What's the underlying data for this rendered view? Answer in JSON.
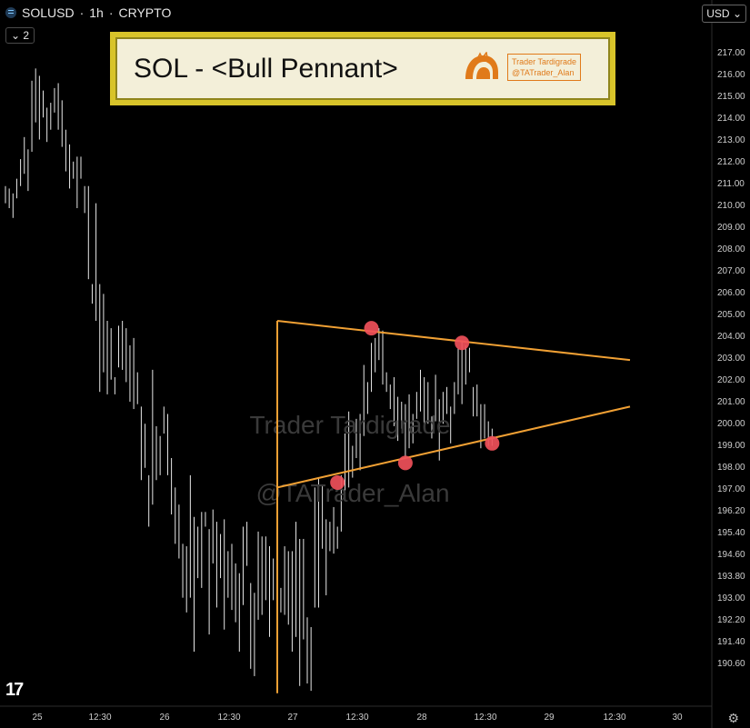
{
  "header": {
    "symbol": "SOLUSD",
    "timeframe": "1h",
    "market": "CRYPTO",
    "separator": "·",
    "indicator_badge": "2",
    "currency": "USD"
  },
  "annotation": {
    "title": "SOL - <Bull Pennant>",
    "brand_name": "Trader Tardigrade",
    "brand_handle": "@TATrader_Alan"
  },
  "watermark": {
    "line1": "Trader Tardigrade",
    "line2": "@TATrader_Alan"
  },
  "colors": {
    "background": "#000000",
    "candle": "#e8e8e8",
    "pattern_line": "#f0a034",
    "touch_point": "#f0505a",
    "title_border": "#d8c42a",
    "title_fill": "#f3efd9"
  },
  "chart_data": {
    "type": "line",
    "title": "SOL - <Bull Pennant>",
    "xlabel": "",
    "ylabel": "",
    "x_tick_labels": [
      "25",
      "12:30",
      "26",
      "12:30",
      "27",
      "12:30",
      "28",
      "12:30",
      "29",
      "12:30",
      "30"
    ],
    "y_tick_labels": [
      "217.00",
      "216.00",
      "215.00",
      "214.00",
      "213.00",
      "212.00",
      "211.00",
      "210.00",
      "209.00",
      "208.00",
      "207.00",
      "206.00",
      "205.00",
      "204.00",
      "203.00",
      "202.00",
      "201.00",
      "200.00",
      "199.00",
      "198.00",
      "197.00",
      "196.20",
      "195.40",
      "194.60",
      "193.80",
      "193.00",
      "192.20",
      "191.40",
      "190.60"
    ],
    "ylim": [
      190.5,
      217.5
    ],
    "grid": false,
    "price_bars": [
      [
        210.7,
        211.4
      ],
      [
        210.5,
        211.3
      ],
      [
        210.1,
        211.1
      ],
      [
        210.9,
        211.7
      ],
      [
        211.4,
        212.5
      ],
      [
        211.9,
        213.4
      ],
      [
        211.2,
        212.9
      ],
      [
        212.8,
        215.7
      ],
      [
        214.0,
        216.2
      ],
      [
        213.3,
        215.9
      ],
      [
        214.2,
        215.3
      ],
      [
        213.2,
        214.6
      ],
      [
        213.7,
        214.8
      ],
      [
        214.4,
        215.4
      ],
      [
        213.7,
        215.6
      ],
      [
        213.0,
        214.9
      ],
      [
        212.0,
        213.7
      ],
      [
        211.3,
        213.1
      ],
      [
        211.7,
        212.4
      ],
      [
        210.5,
        212.6
      ],
      [
        211.7,
        212.6
      ],
      [
        210.3,
        211.4
      ],
      [
        207.6,
        211.4
      ],
      [
        206.6,
        207.4
      ],
      [
        205.9,
        210.7
      ],
      [
        203.0,
        207.4
      ],
      [
        203.8,
        207.0
      ],
      [
        202.9,
        205.9
      ],
      [
        203.5,
        205.6
      ],
      [
        202.9,
        203.6
      ],
      [
        204.0,
        205.7
      ],
      [
        203.9,
        205.9
      ],
      [
        203.4,
        205.6
      ],
      [
        202.6,
        204.9
      ],
      [
        202.3,
        205.2
      ],
      [
        202.5,
        203.8
      ],
      [
        199.4,
        202.4
      ],
      [
        199.9,
        201.7
      ],
      [
        197.5,
        199.6
      ],
      [
        198.4,
        203.9
      ],
      [
        199.4,
        201.6
      ],
      [
        199.6,
        201.2
      ],
      [
        201.3,
        202.4
      ],
      [
        199.6,
        202.1
      ],
      [
        198.0,
        200.3
      ],
      [
        196.8,
        199.1
      ],
      [
        196.2,
        198.4
      ],
      [
        194.6,
        196.8
      ],
      [
        194.0,
        196.7
      ],
      [
        194.6,
        199.6
      ],
      [
        192.4,
        197.9
      ],
      [
        195.4,
        197.5
      ],
      [
        195.0,
        198.1
      ],
      [
        197.5,
        198.1
      ],
      [
        193.1,
        197.4
      ],
      [
        196.0,
        198.2
      ],
      [
        194.2,
        197.7
      ],
      [
        195.4,
        197.2
      ],
      [
        193.3,
        197.8
      ],
      [
        194.6,
        196.5
      ],
      [
        194.1,
        196.8
      ],
      [
        193.6,
        196.0
      ],
      [
        192.4,
        195.6
      ],
      [
        194.3,
        197.5
      ],
      [
        195.9,
        197.7
      ],
      [
        191.7,
        195.2
      ],
      [
        191.4,
        194.8
      ],
      [
        193.7,
        197.3
      ],
      [
        193.9,
        197.1
      ],
      [
        194.5,
        197.1
      ],
      [
        193.0,
        196.7
      ],
      [
        194.5,
        196.2
      ],
      [
        193.8,
        195.6
      ],
      [
        194.0,
        195.0
      ],
      [
        193.9,
        196.7
      ],
      [
        193.5,
        196.5
      ],
      [
        192.4,
        196.5
      ],
      [
        193.0,
        197.7
      ],
      [
        191.0,
        197.0
      ],
      [
        192.9,
        197.0
      ],
      [
        191.1,
        193.8
      ],
      [
        190.8,
        193.4
      ],
      [
        194.2,
        199.1
      ],
      [
        194.2,
        199.5
      ],
      [
        196.6,
        199.2
      ],
      [
        194.7,
        197.8
      ],
      [
        196.5,
        197.7
      ],
      [
        196.4,
        198.3
      ],
      [
        196.6,
        197.5
      ],
      [
        197.3,
        199.6
      ],
      [
        198.6,
        201.3
      ],
      [
        199.1,
        202.2
      ],
      [
        199.5,
        200.8
      ],
      [
        200.3,
        201.9
      ],
      [
        199.8,
        202.1
      ],
      [
        201.2,
        204.1
      ],
      [
        202.1,
        203.4
      ],
      [
        203.0,
        205.0
      ],
      [
        203.8,
        205.2
      ],
      [
        204.3,
        205.6
      ],
      [
        203.3,
        205.5
      ],
      [
        203.0,
        203.8
      ],
      [
        202.3,
        203.3
      ],
      [
        201.6,
        203.6
      ],
      [
        201.0,
        202.8
      ],
      [
        201.5,
        202.6
      ],
      [
        200.3,
        202.5
      ],
      [
        200.7,
        202.9
      ],
      [
        200.9,
        202.1
      ],
      [
        201.9,
        203.0
      ],
      [
        202.2,
        203.9
      ],
      [
        201.5,
        203.6
      ],
      [
        201.7,
        203.4
      ],
      [
        201.1,
        202.0
      ],
      [
        201.8,
        203.7
      ],
      [
        200.2,
        202.7
      ],
      [
        201.7,
        203.0
      ],
      [
        202.1,
        203.2
      ],
      [
        200.9,
        202.4
      ],
      [
        202.1,
        203.4
      ],
      [
        202.9,
        204.8
      ],
      [
        202.5,
        205.1
      ],
      [
        203.3,
        204.9
      ],
      [
        203.8,
        204.8
      ],
      [
        202.0,
        203.2
      ],
      [
        202.0,
        203.3
      ],
      [
        200.7,
        202.5
      ],
      [
        201.1,
        202.5
      ],
      [
        200.8,
        201.8
      ],
      [
        200.8,
        201.5
      ]
    ],
    "pattern": {
      "name": "Bull Pennant",
      "pole_low": 190.7,
      "pole_high": 205.9,
      "upper_trendline": [
        205.9,
        204.3
      ],
      "lower_trendline": [
        199.1,
        202.4
      ]
    },
    "touch_points": [
      {
        "bar": 97,
        "price": 205.6
      },
      {
        "bar": 121,
        "price": 205.0
      },
      {
        "bar": 106,
        "price": 200.1
      },
      {
        "bar": 88,
        "price": 199.3
      },
      {
        "bar": 129,
        "price": 200.9
      }
    ]
  }
}
